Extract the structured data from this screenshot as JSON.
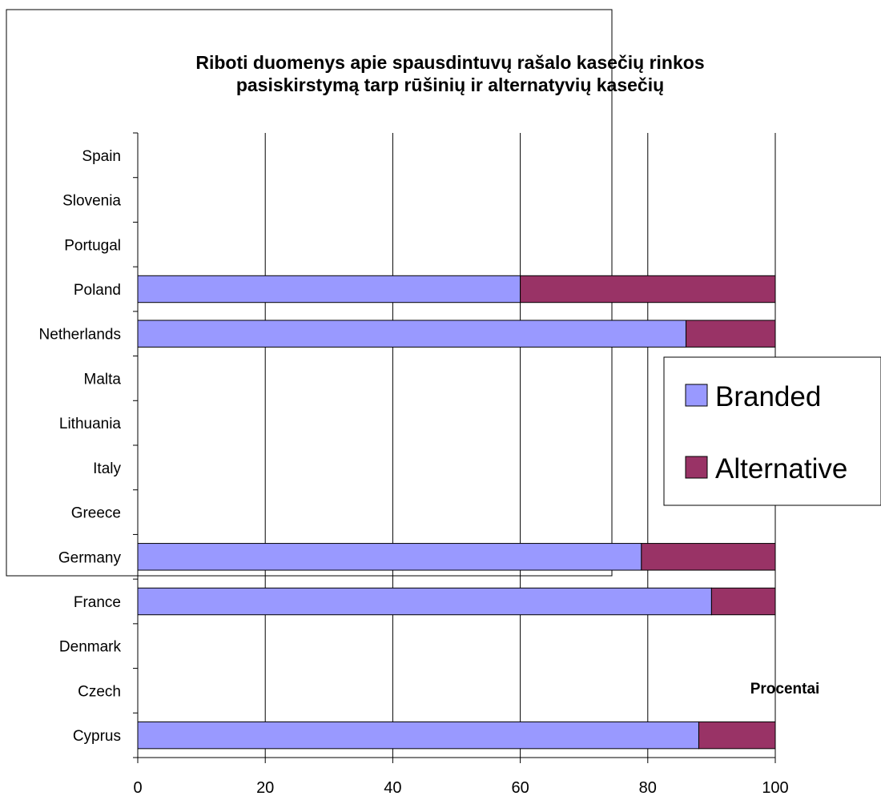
{
  "chart_data": {
    "type": "bar",
    "orientation": "horizontal",
    "stacked": true,
    "title": "Riboti duomenys apie spausdintuvų rašalo kasečių rinkos pasiskirstymą tarp rūšinių ir alternatyvių kasečių",
    "title_lines": [
      "Riboti duomenys apie spausdintuvų rašalo kasečių rinkos",
      "pasiskirstymą tarp rūšinių ir alternatyvių kasečių"
    ],
    "xlabel": "Procentai",
    "xlim": [
      0,
      100
    ],
    "xticks": [
      0,
      20,
      40,
      60,
      80,
      100
    ],
    "grid": "vertical",
    "legend_position": "right",
    "categories": [
      "Spain",
      "Slovenia",
      "Portugal",
      "Poland",
      "Netherlands",
      "Malta",
      "Lithuania",
      "Italy",
      "Greece",
      "Germany",
      "France",
      "Denmark",
      "Czech",
      "Cyprus"
    ],
    "series": [
      {
        "name": "Branded",
        "color": "#9999ff",
        "values": [
          null,
          null,
          null,
          60,
          86,
          null,
          null,
          null,
          null,
          79,
          90,
          null,
          null,
          88
        ]
      },
      {
        "name": "Alternative",
        "color": "#993366",
        "values": [
          null,
          null,
          null,
          40,
          14,
          null,
          null,
          null,
          null,
          21,
          10,
          null,
          null,
          12
        ]
      }
    ]
  }
}
